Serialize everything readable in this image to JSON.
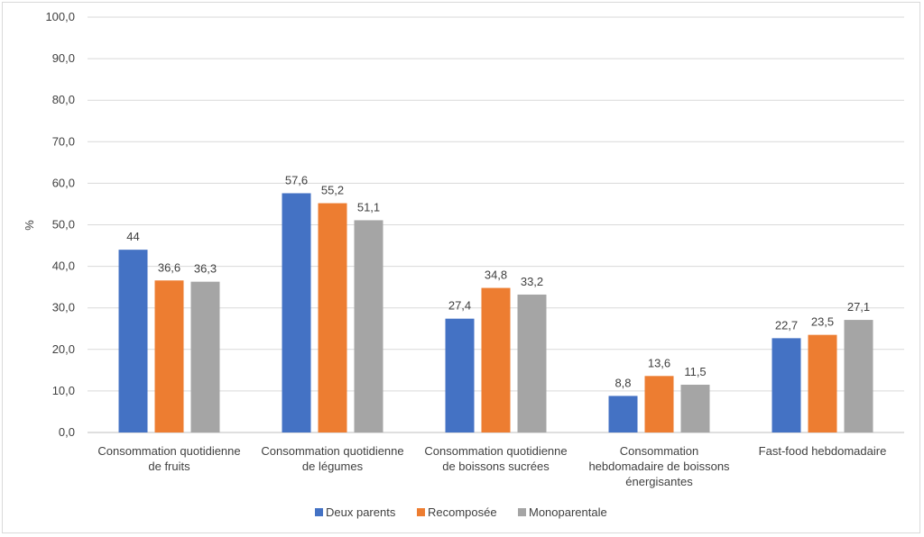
{
  "chart_data": {
    "type": "bar",
    "ylabel": "%",
    "ylim": [
      0,
      100
    ],
    "ytick_step": 10,
    "ytick_labels": [
      "0,0",
      "10,0",
      "20,0",
      "30,0",
      "40,0",
      "50,0",
      "60,0",
      "70,0",
      "80,0",
      "90,0",
      "100,0"
    ],
    "grid": true,
    "legend_position": "bottom",
    "categories": [
      [
        "Consommation quotidienne",
        "de fruits"
      ],
      [
        "Consommation quotidienne",
        "de légumes"
      ],
      [
        "Consommation quotidienne",
        "de boissons sucrées"
      ],
      [
        "Consommation",
        "hebdomadaire de boissons",
        "énergisantes"
      ],
      [
        "Fast-food hebdomadaire"
      ]
    ],
    "series": [
      {
        "name": "Deux parents",
        "color": "#4472C4",
        "values": [
          44,
          57.6,
          27.4,
          8.8,
          22.7
        ],
        "labels": [
          "44",
          "57,6",
          "27,4",
          "8,8",
          "22,7"
        ]
      },
      {
        "name": "Recomposée",
        "color": "#ED7D31",
        "values": [
          36.6,
          55.2,
          34.8,
          13.6,
          23.5
        ],
        "labels": [
          "36,6",
          "55,2",
          "34,8",
          "13,6",
          "23,5"
        ]
      },
      {
        "name": "Monoparentale",
        "color": "#A5A5A5",
        "values": [
          36.3,
          51.1,
          33.2,
          11.5,
          27.1
        ],
        "labels": [
          "36,3",
          "51,1",
          "33,2",
          "11,5",
          "27,1"
        ]
      }
    ]
  }
}
